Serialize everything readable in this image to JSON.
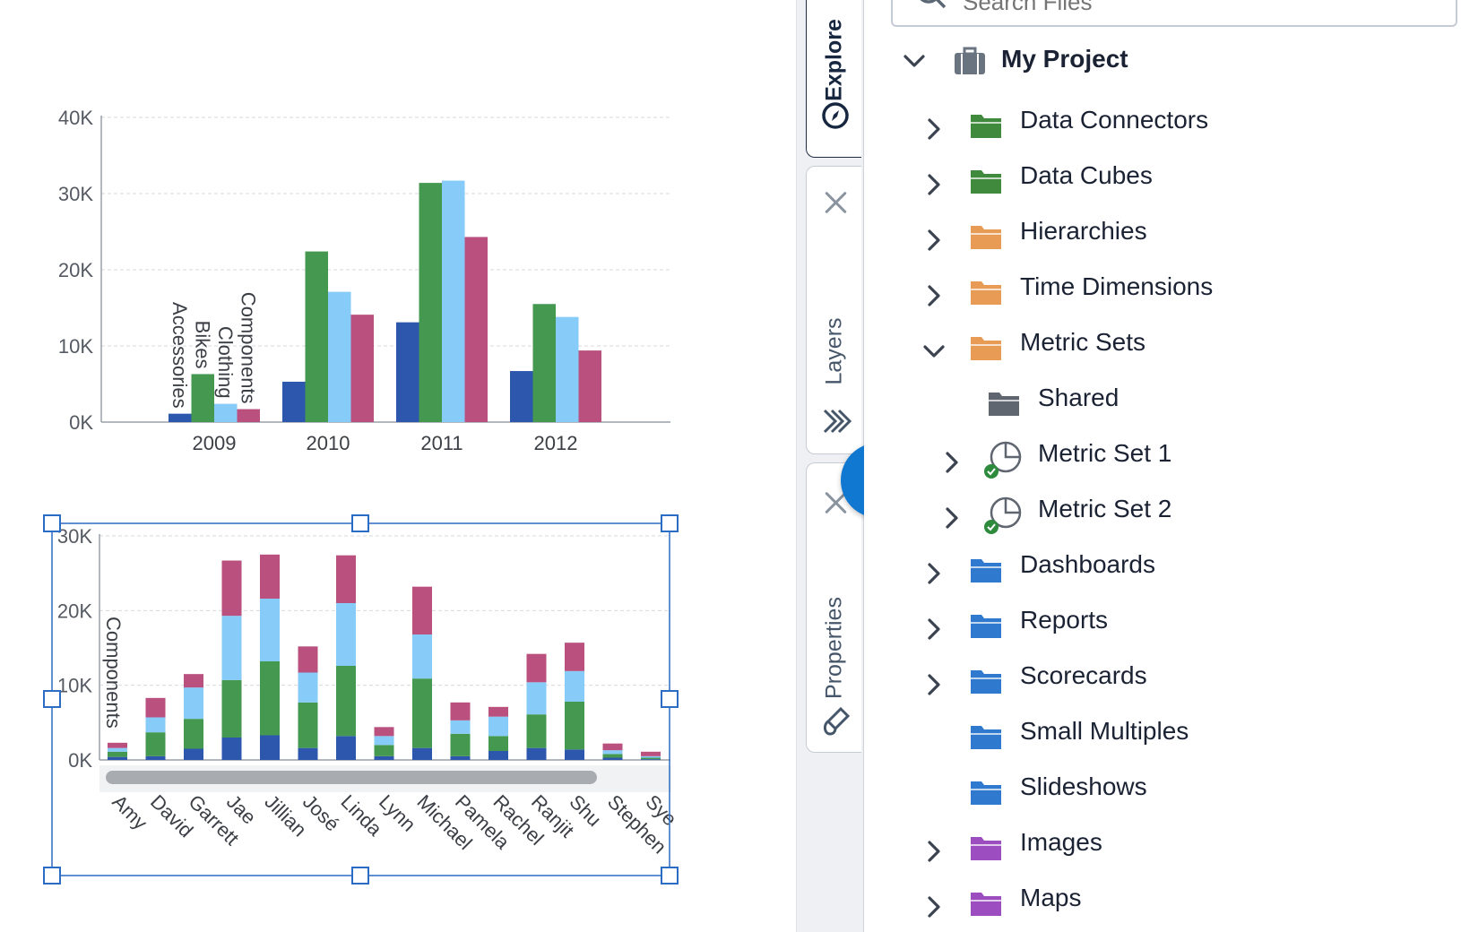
{
  "chart_data": [
    {
      "type": "bar",
      "categories": [
        "2009",
        "2010",
        "2011",
        "2012"
      ],
      "series": [
        {
          "name": "Accessories",
          "values": [
            1100,
            5300,
            13100,
            6700
          ]
        },
        {
          "name": "Bikes",
          "values": [
            6300,
            22400,
            31400,
            15500
          ]
        },
        {
          "name": "Clothing",
          "values": [
            2400,
            17100,
            31700,
            13800
          ]
        },
        {
          "name": "Components",
          "values": [
            1700,
            14100,
            24300,
            9400
          ]
        }
      ],
      "ylim": [
        0,
        40000
      ],
      "yticks": [
        "0K",
        "10K",
        "20K",
        "30K",
        "40K"
      ],
      "grid": true,
      "legend": "none"
    },
    {
      "type": "bar",
      "stacked": true,
      "categories": [
        "Amy",
        "David",
        "Garrett",
        "Jae",
        "Jillian",
        "José",
        "Linda",
        "Lynn",
        "Michael",
        "Pamela",
        "Rachel",
        "Ranjit",
        "Shu",
        "Stephen",
        "Sye"
      ],
      "series": [
        {
          "name": "Accessories",
          "values": [
            400,
            500,
            1500,
            3000,
            3300,
            1600,
            3200,
            500,
            1600,
            500,
            1200,
            1600,
            1400,
            300,
            100
          ]
        },
        {
          "name": "Bikes",
          "values": [
            700,
            3200,
            4000,
            7700,
            9900,
            6100,
            9400,
            1500,
            9300,
            3000,
            2000,
            4500,
            6400,
            500,
            200
          ]
        },
        {
          "name": "Clothing",
          "values": [
            500,
            2000,
            4200,
            8600,
            8400,
            4000,
            8400,
            1200,
            5900,
            1800,
            2600,
            4300,
            4100,
            500,
            200
          ]
        },
        {
          "name": "Components",
          "values": [
            700,
            2600,
            1800,
            7400,
            5900,
            3500,
            6400,
            1200,
            6400,
            2400,
            1300,
            3800,
            3800,
            900,
            600
          ]
        }
      ],
      "ylim": [
        0,
        30000
      ],
      "yticks": [
        "0K",
        "10K",
        "20K",
        "30K"
      ],
      "grid": true,
      "legend": "none",
      "annotation": "Components"
    }
  ],
  "tabs": {
    "explore": "Explore",
    "layers": "Layers",
    "properties": "Properties"
  },
  "search": {
    "placeholder": "Search Files"
  },
  "tree": {
    "root": "My Project",
    "items": [
      {
        "label": "Data Connectors",
        "color": "#3f8a3c"
      },
      {
        "label": "Data Cubes",
        "color": "#3f8a3c"
      },
      {
        "label": "Hierarchies",
        "color": "#e89b55"
      },
      {
        "label": "Time Dimensions",
        "color": "#e89b55"
      },
      {
        "label": "Metric Sets",
        "color": "#e89b55"
      },
      {
        "label": "Shared",
        "color": "#5f6670"
      },
      {
        "label": "Metric Set 1",
        "color": "#5f6670"
      },
      {
        "label": "Metric Set 2",
        "color": "#5f6670"
      },
      {
        "label": "Dashboards",
        "color": "#2f79cf"
      },
      {
        "label": "Reports",
        "color": "#2f79cf"
      },
      {
        "label": "Scorecards",
        "color": "#2f79cf"
      },
      {
        "label": "Small Multiples",
        "color": "#2f79cf"
      },
      {
        "label": "Slideshows",
        "color": "#2f79cf"
      },
      {
        "label": "Images",
        "color": "#9c4dbf"
      },
      {
        "label": "Maps",
        "color": "#9c4dbf"
      }
    ]
  },
  "colors": {
    "accessories": "#2c57ad",
    "bikes": "#459850",
    "clothing": "#87cbf9",
    "components": "#b9507e",
    "selection": "#b3d5ef",
    "accent": "#1178d2"
  }
}
